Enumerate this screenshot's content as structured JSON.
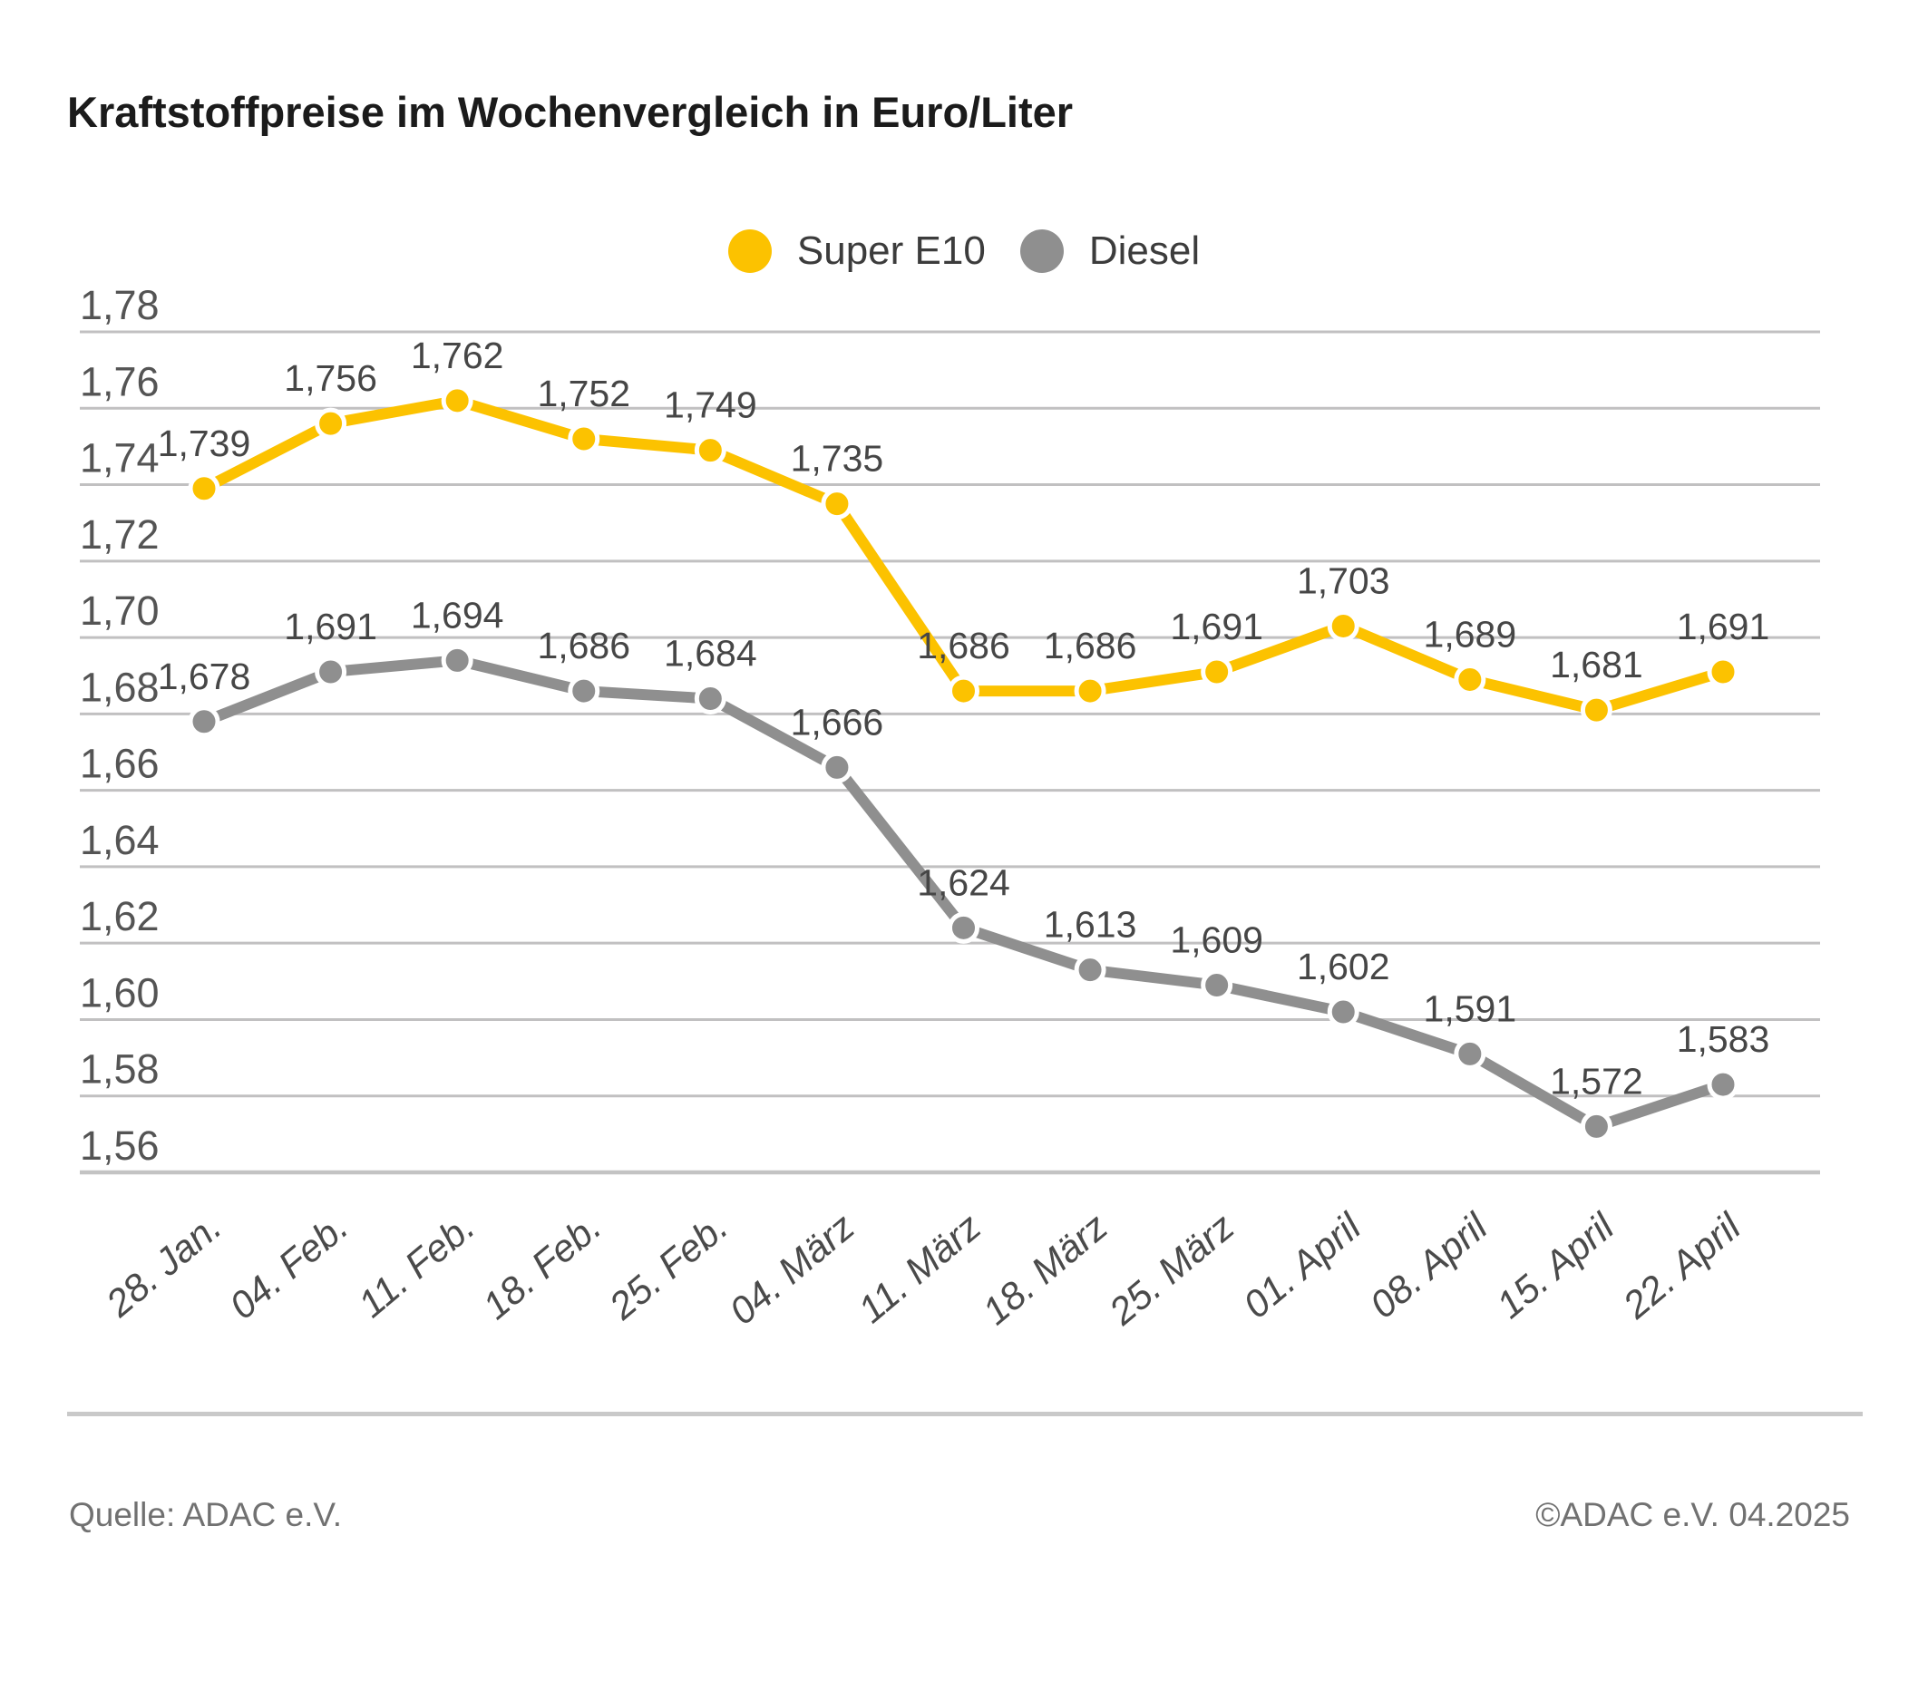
{
  "title": "Kraftstoffpreise im Wochenvergleich in Euro/Liter",
  "legend": {
    "items": [
      {
        "label": "Super E10",
        "color": "#fcc200"
      },
      {
        "label": "Diesel",
        "color": "#8f8f8f"
      }
    ]
  },
  "footer": {
    "source": "Quelle: ADAC e.V.",
    "copyright": "©ADAC e.V. 04.2025"
  },
  "chart_data": {
    "type": "line",
    "title": "Kraftstoffpreise im Wochenvergleich in Euro/Liter",
    "unit": "Euro/Liter",
    "categories": [
      "28. Jan.",
      "04. Feb.",
      "11. Feb.",
      "18. Feb.",
      "25. Feb.",
      "04. März",
      "11. März",
      "18. März",
      "25. März",
      "01. April",
      "08. April",
      "15. April",
      "22. April"
    ],
    "series": [
      {
        "name": "Super E10",
        "color": "#fcc200",
        "values": [
          1.739,
          1.756,
          1.762,
          1.752,
          1.749,
          1.735,
          1.686,
          1.686,
          1.691,
          1.703,
          1.689,
          1.681,
          1.691
        ],
        "value_labels": [
          "1,739",
          "1,756",
          "1,762",
          "1,752",
          "1,749",
          "1,735",
          "1,686",
          "1,686",
          "1,691",
          "1,703",
          "1,689",
          "1,681",
          "1,691"
        ]
      },
      {
        "name": "Diesel",
        "color": "#8f8f8f",
        "values": [
          1.678,
          1.691,
          1.694,
          1.686,
          1.684,
          1.666,
          1.624,
          1.613,
          1.609,
          1.602,
          1.591,
          1.572,
          1.583
        ],
        "value_labels": [
          "1,678",
          "1,691",
          "1,694",
          "1,686",
          "1,684",
          "1,666",
          "1,624",
          "1,613",
          "1,609",
          "1,602",
          "1,591",
          "1,572",
          "1,583"
        ]
      }
    ],
    "ylim": [
      1.56,
      1.78
    ],
    "ytick_step": 0.02,
    "y_tick_labels": [
      "1,78",
      "1,76",
      "1,74",
      "1,72",
      "1,70",
      "1,68",
      "1,66",
      "1,64",
      "1,62",
      "1,60",
      "1,58",
      "1,56"
    ],
    "grid": true,
    "legend_position": "top-center",
    "value_labels_shown": true
  }
}
